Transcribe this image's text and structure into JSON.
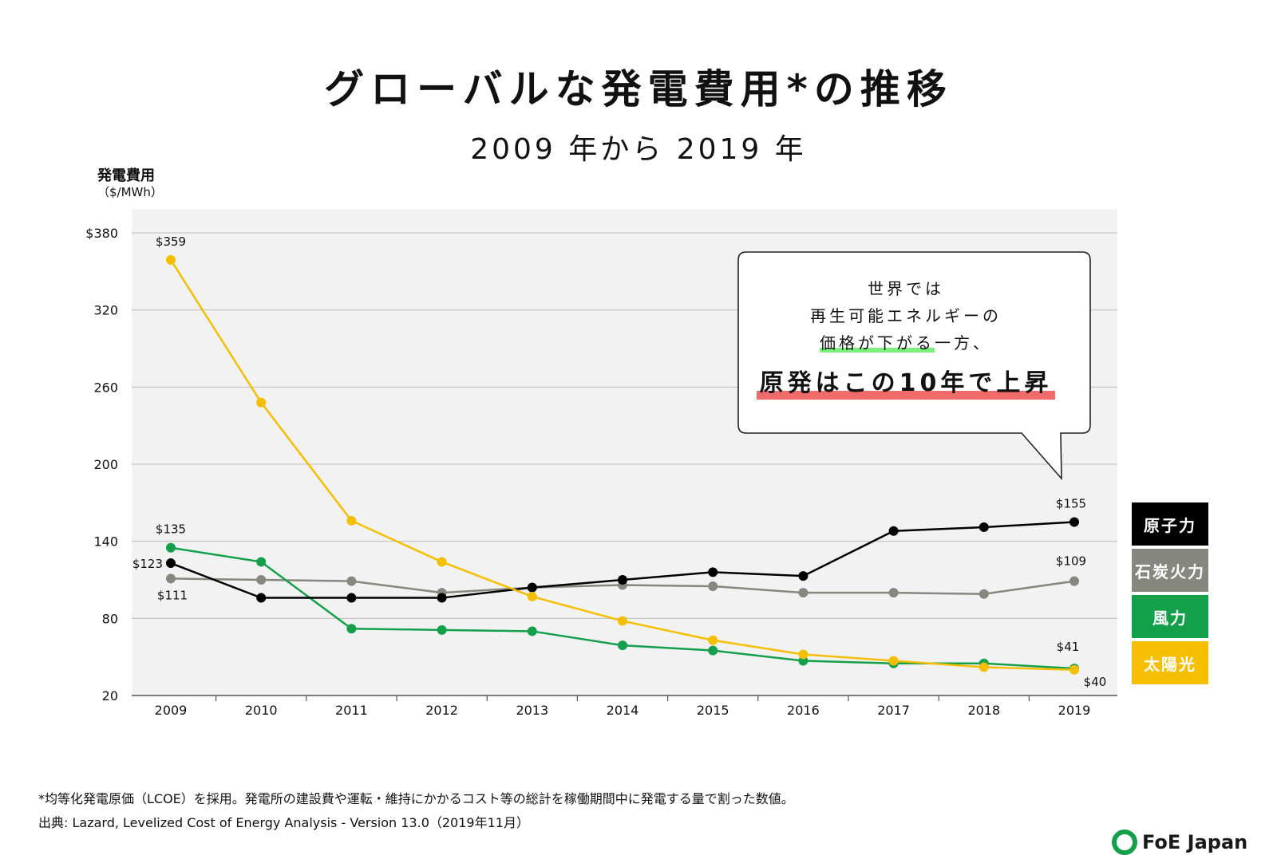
{
  "title": "グローバルな発電費用*の推移",
  "subtitle": "2009 年から 2019 年",
  "axis": {
    "ylabel": "発電費用",
    "yunit": "（$/MWh）"
  },
  "callout": {
    "line1": "世界では",
    "line2": "再生可能エネルギーの",
    "line3a": "価格が下がる",
    "line3b": "一方、",
    "line4": "原発はこの10年で上昇"
  },
  "legend": [
    "原子力",
    "石炭火力",
    "風力",
    "太陽光"
  ],
  "footnote": "*均等化発電原価（LCOE）を採用。発電所の建設費や運転・維持にかかるコスト等の総計を稼働期間中に発電する量で割った数値。",
  "source": "出典: Lazard, Levelized Cost of Energy Analysis - Version 13.0（2019年11月）",
  "logo": "FoE Japan",
  "colors": {
    "nuclear": "#000000",
    "coal": "#86877f",
    "wind": "#14a04a",
    "solar": "#f6be00",
    "plot_bg": "#f2f2f2",
    "grid": "#bdbdbd"
  },
  "chart_data": {
    "type": "line",
    "title": "グローバルな発電費用*の推移",
    "subtitle": "2009 年から 2019 年",
    "ylabel": "発電費用（$/MWh）",
    "xlabel": "",
    "ylim": [
      20,
      400
    ],
    "yticks": [
      20,
      80,
      140,
      200,
      260,
      320,
      380
    ],
    "ytick_labels": [
      "20",
      "80",
      "140",
      "200",
      "260",
      "320",
      "$380"
    ],
    "grid": true,
    "legend_position": "right",
    "x": [
      "2009",
      "2010",
      "2011",
      "2012",
      "2013",
      "2014",
      "2015",
      "2016",
      "2017",
      "2018",
      "2019"
    ],
    "series": [
      {
        "name": "原子力",
        "key": "nuclear",
        "values": [
          123,
          96,
          96,
          96,
          104,
          110,
          116,
          113,
          148,
          151,
          155
        ]
      },
      {
        "name": "石炭火力",
        "key": "coal",
        "values": [
          111,
          110,
          109,
          100,
          104,
          106,
          105,
          100,
          100,
          99,
          109
        ]
      },
      {
        "name": "風力",
        "key": "wind",
        "values": [
          135,
          124,
          72,
          71,
          70,
          59,
          55,
          47,
          45,
          45,
          41
        ]
      },
      {
        "name": "太陽光",
        "key": "solar",
        "values": [
          359,
          248,
          156,
          124,
          97,
          78,
          63,
          52,
          47,
          42,
          40
        ]
      }
    ],
    "data_labels": [
      {
        "series": "太陽光",
        "x": "2009",
        "text": "$359"
      },
      {
        "series": "風力",
        "x": "2009",
        "text": "$135"
      },
      {
        "series": "原子力",
        "x": "2009",
        "text": "$123"
      },
      {
        "series": "石炭火力",
        "x": "2009",
        "text": "$111"
      },
      {
        "series": "原子力",
        "x": "2019",
        "text": "$155"
      },
      {
        "series": "石炭火力",
        "x": "2019",
        "text": "$109"
      },
      {
        "series": "風力",
        "x": "2019",
        "text": "$41"
      },
      {
        "series": "太陽光",
        "x": "2019",
        "text": "$40"
      }
    ]
  }
}
